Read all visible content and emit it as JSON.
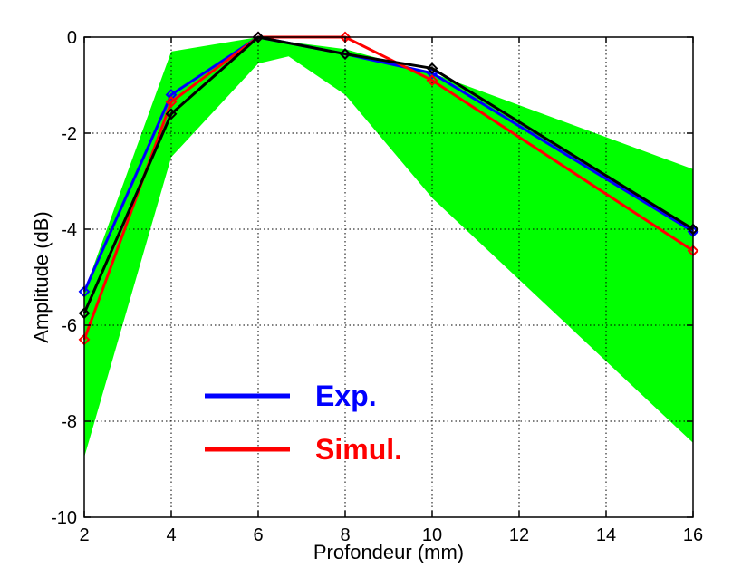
{
  "chart_data": {
    "type": "line",
    "title": "",
    "xlabel": "Profondeur (mm)",
    "ylabel": "Amplitude (dB)",
    "xlim": [
      2,
      16
    ],
    "ylim": [
      -10,
      0
    ],
    "xticks": [
      2,
      4,
      6,
      8,
      10,
      12,
      14,
      16
    ],
    "yticks": [
      0,
      -2,
      -4,
      -6,
      -8,
      -10
    ],
    "grid": true,
    "legend_position": "lower-center",
    "x": [
      2,
      4,
      6,
      8,
      10,
      16
    ],
    "series": [
      {
        "name": "Exp.",
        "color": "#0000ff",
        "marker": "diamond",
        "values": [
          -5.3,
          -1.2,
          0,
          -0.35,
          -0.75,
          -4.05
        ]
      },
      {
        "name": "Simul.",
        "color": "#ff0000",
        "marker": "diamond",
        "values": [
          -6.3,
          -1.35,
          0,
          0,
          -0.9,
          -4.45
        ]
      },
      {
        "name": "",
        "color": "#000000",
        "marker": "diamond",
        "values": [
          -5.75,
          -1.6,
          0,
          -0.35,
          -0.65,
          -4.0
        ]
      }
    ],
    "band": {
      "color": "#00ff00",
      "x": [
        2,
        4,
        6,
        6.7,
        8,
        10,
        16
      ],
      "upper": [
        -5.3,
        -0.3,
        0,
        -0.1,
        -0.25,
        -0.75,
        -2.75
      ],
      "lower": [
        -8.75,
        -2.5,
        -0.55,
        -0.4,
        -1.2,
        -3.35,
        -8.45
      ]
    },
    "legend": [
      {
        "label": "Exp.",
        "color": "#0000ff"
      },
      {
        "label": "Simul.",
        "color": "#ff0000"
      }
    ]
  }
}
